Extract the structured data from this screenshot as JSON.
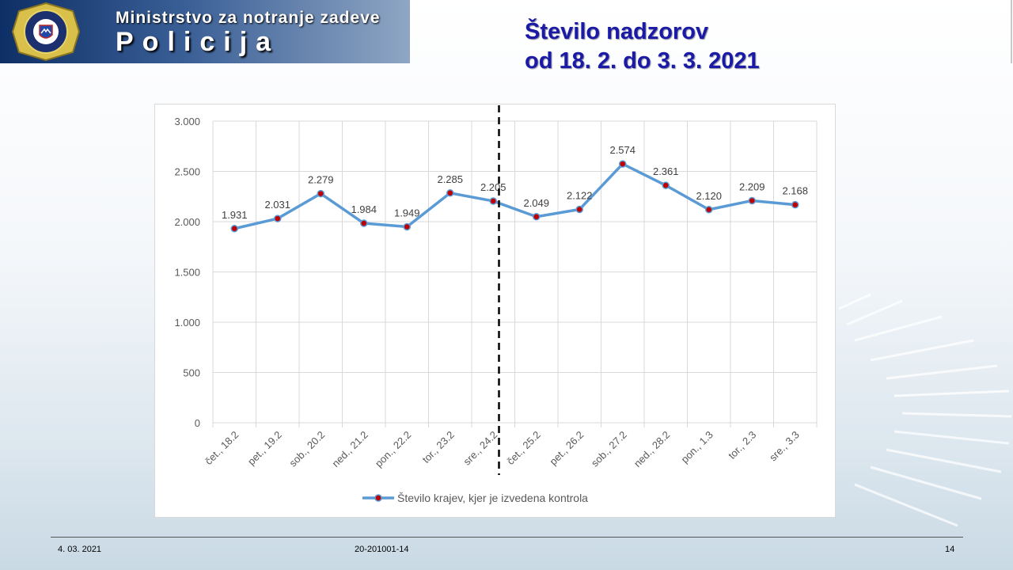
{
  "header": {
    "ministry": "Ministrstvo za notranje zadeve",
    "policija": "Policija"
  },
  "title": {
    "line1": "Število nadzorov",
    "line2": "od 18. 2. do 3. 3. 2021"
  },
  "colors": {
    "line": "#5b9bd5",
    "marker": "#c00000",
    "title": "#1a1aa6",
    "banner": "#0d2f66"
  },
  "chart_data": {
    "type": "line",
    "categories": [
      "čet., 18.2",
      "pet., 19.2",
      "sob., 20.2",
      "ned., 21.2",
      "pon., 22.2",
      "tor., 23.2",
      "sre., 24.2",
      "čet., 25.2",
      "pet., 26.2",
      "sob., 27.2",
      "ned., 28.2",
      "pon., 1.3",
      "tor., 2.3",
      "sre., 3.3"
    ],
    "series": [
      {
        "name": "Število krajev, kjer je izvedena kontrola",
        "values": [
          1931,
          2031,
          2279,
          1984,
          1949,
          2285,
          2205,
          2049,
          2122,
          2574,
          2361,
          2120,
          2209,
          2168
        ]
      }
    ],
    "data_labels": [
      "1.931",
      "2.031",
      "2.279",
      "1.984",
      "1.949",
      "2.285",
      "2.205",
      "2.049",
      "2.122",
      "2.574",
      "2.361",
      "2.120",
      "2.209",
      "2.168"
    ],
    "yticks": [
      0,
      500,
      1000,
      1500,
      2000,
      2500,
      3000
    ],
    "ytick_labels": [
      "0",
      "500",
      "1.000",
      "1.500",
      "2.000",
      "2.500",
      "3.000"
    ],
    "ylim": [
      0,
      3000
    ],
    "grid": true,
    "legend_position": "bottom",
    "divider_between": [
      "sre., 24.2",
      "čet., 25.2"
    ]
  },
  "footer": {
    "date": "4. 03. 2021",
    "code": "20-201001-14",
    "page": "14"
  }
}
